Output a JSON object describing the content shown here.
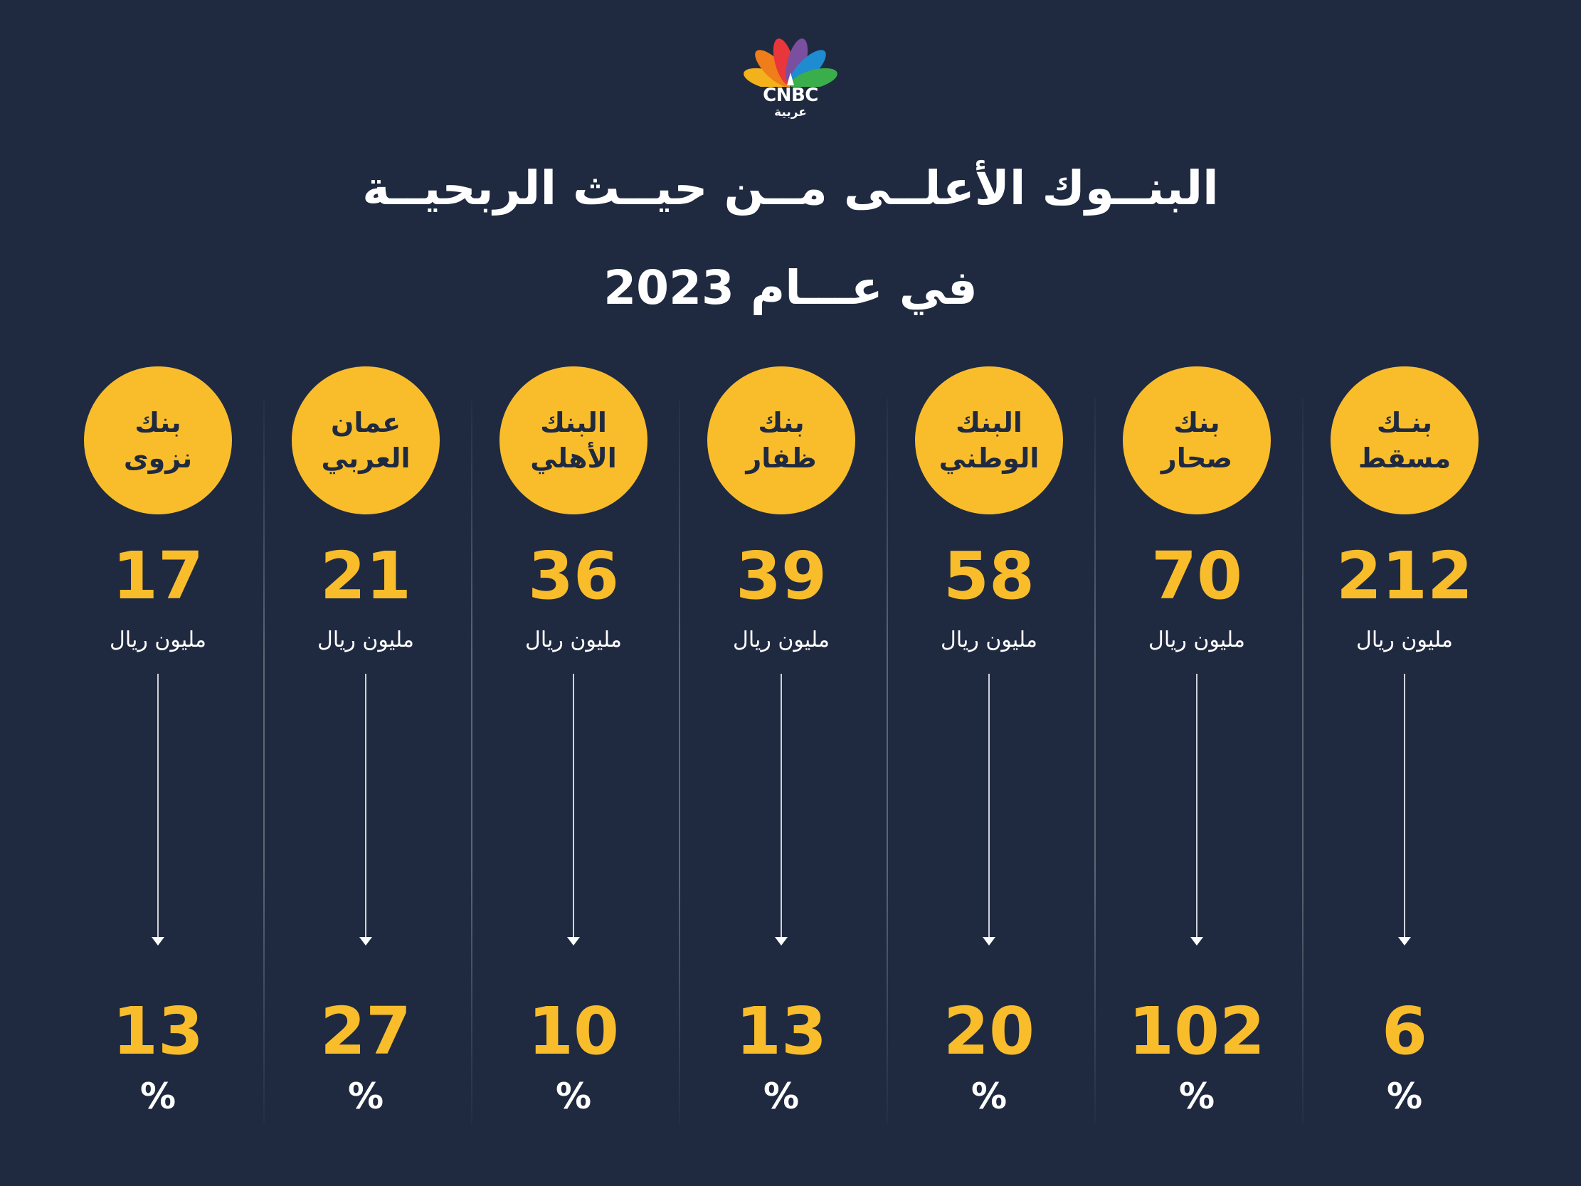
{
  "brand": {
    "wordmark": "CNBC",
    "sub": "عربية",
    "icon": "peacock-logo-icon",
    "colors": [
      "#f3b21b",
      "#ef7d1a",
      "#e8363a",
      "#7a4fa0",
      "#1f8bd0",
      "#3aae4b"
    ]
  },
  "title": {
    "line1": "البنــوك الأعلــى مــن حيــث الربحيــة",
    "line2": "في عـــام 2023"
  },
  "colors": {
    "background": "#1f2a40",
    "accent": "#f9bd2c",
    "text": "#ffffff"
  },
  "banks": [
    {
      "name_line1": "بنـك",
      "name_line2": "مسقط",
      "profit": "212",
      "unit": "مليون ريال",
      "growth": "6",
      "percent": "%"
    },
    {
      "name_line1": "بنك",
      "name_line2": "صحار",
      "profit": "70",
      "unit": "مليون ريال",
      "growth": "102",
      "percent": "%"
    },
    {
      "name_line1": "البنك",
      "name_line2": "الوطني",
      "profit": "58",
      "unit": "مليون ريال",
      "growth": "20",
      "percent": "%"
    },
    {
      "name_line1": "بنك",
      "name_line2": "ظفار",
      "profit": "39",
      "unit": "مليون ريال",
      "growth": "13",
      "percent": "%"
    },
    {
      "name_line1": "البنك",
      "name_line2": "الأهلي",
      "profit": "36",
      "unit": "مليون ريال",
      "growth": "10",
      "percent": "%"
    },
    {
      "name_line1": "عمان",
      "name_line2": "العربي",
      "profit": "21",
      "unit": "مليون ريال",
      "growth": "27",
      "percent": "%"
    },
    {
      "name_line1": "بنك",
      "name_line2": "نزوى",
      "profit": "17",
      "unit": "مليون ريال",
      "growth": "13",
      "percent": "%"
    }
  ]
}
